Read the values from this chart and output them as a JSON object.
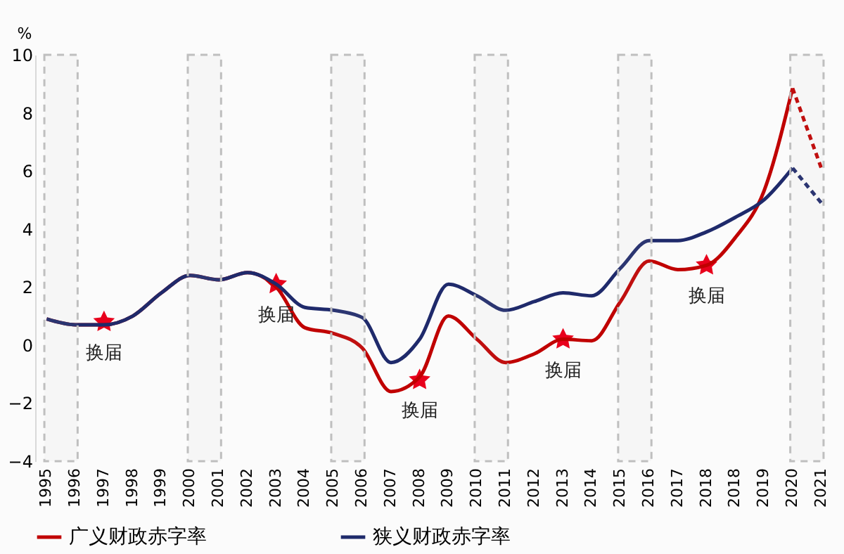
{
  "chart_data": {
    "type": "line",
    "ylabel": "%",
    "categories": [
      "1995",
      "1996",
      "1997",
      "1998",
      "1999",
      "2000",
      "2001",
      "2002",
      "2003",
      "2004",
      "2005",
      "2006",
      "2007",
      "2008",
      "2009",
      "2010",
      "2011",
      "2012",
      "2013",
      "2014",
      "2015",
      "2016",
      "2017",
      "2018",
      "2018",
      "2019",
      "2020",
      "2021"
    ],
    "series": [
      {
        "name": "广义财政赤字率",
        "color": "#c00000",
        "line_style": "solid",
        "values": [
          0.9,
          0.7,
          0.7,
          1.0,
          1.8,
          2.4,
          2.25,
          2.5,
          2.0,
          0.6,
          0.4,
          -0.1,
          -1.6,
          -1.1,
          1.0,
          0.2,
          -0.6,
          -0.3,
          0.2,
          0.15,
          1.5,
          2.9,
          2.6,
          2.75,
          3.7,
          5.3,
          8.85,
          null
        ]
      },
      {
        "color": "#c00000",
        "line_style": "dashed",
        "values": [
          null,
          null,
          null,
          null,
          null,
          null,
          null,
          null,
          null,
          null,
          null,
          null,
          null,
          null,
          null,
          null,
          null,
          null,
          null,
          null,
          null,
          null,
          null,
          null,
          null,
          null,
          8.85,
          6.1
        ]
      },
      {
        "name": "狭义财政赤字率",
        "color": "#1f2a6b",
        "line_style": "solid",
        "values": [
          0.9,
          0.7,
          0.7,
          1.0,
          1.8,
          2.4,
          2.25,
          2.5,
          2.1,
          1.3,
          1.2,
          0.95,
          -0.6,
          0.2,
          2.1,
          1.7,
          1.2,
          1.5,
          1.8,
          1.7,
          2.65,
          3.6,
          3.6,
          3.9,
          4.4,
          5.0,
          6.1,
          null
        ]
      },
      {
        "color": "#1f2a6b",
        "line_style": "dashed",
        "values": [
          null,
          null,
          null,
          null,
          null,
          null,
          null,
          null,
          null,
          null,
          null,
          null,
          null,
          null,
          null,
          null,
          null,
          null,
          null,
          null,
          null,
          null,
          null,
          null,
          null,
          null,
          6.1,
          4.9
        ]
      }
    ],
    "ylim": [
      -4,
      10
    ],
    "yticks": [
      -4,
      -2,
      0,
      2,
      4,
      6,
      8,
      10
    ],
    "grid": false,
    "legend": "bottom",
    "marker": "none",
    "bands": [
      {
        "axis": "x",
        "from": "1995",
        "to": "1996",
        "color": "#bfbfbf"
      },
      {
        "axis": "x",
        "from": "2000",
        "to": "2001",
        "color": "#bfbfbf"
      },
      {
        "axis": "x",
        "from": "2005",
        "to": "2006",
        "color": "#bfbfbf"
      },
      {
        "axis": "x",
        "from": "2010",
        "to": "2011",
        "color": "#bfbfbf"
      },
      {
        "axis": "x",
        "from": "2015",
        "to": "2016",
        "color": "#bfbfbf"
      },
      {
        "axis": "x",
        "from": "2020",
        "to": "2021",
        "color": "#bfbfbf"
      }
    ],
    "annotations": [
      {
        "text": "换届",
        "x": "1997",
        "y": 0.8
      },
      {
        "text": "换届",
        "x": "2003",
        "y": 2.1
      },
      {
        "text": "换届",
        "x": "2008",
        "y": -1.2
      },
      {
        "text": "换届",
        "x": "2013",
        "y": 0.2
      },
      {
        "text": "换届",
        "x": "2018",
        "y": 2.75
      }
    ]
  }
}
